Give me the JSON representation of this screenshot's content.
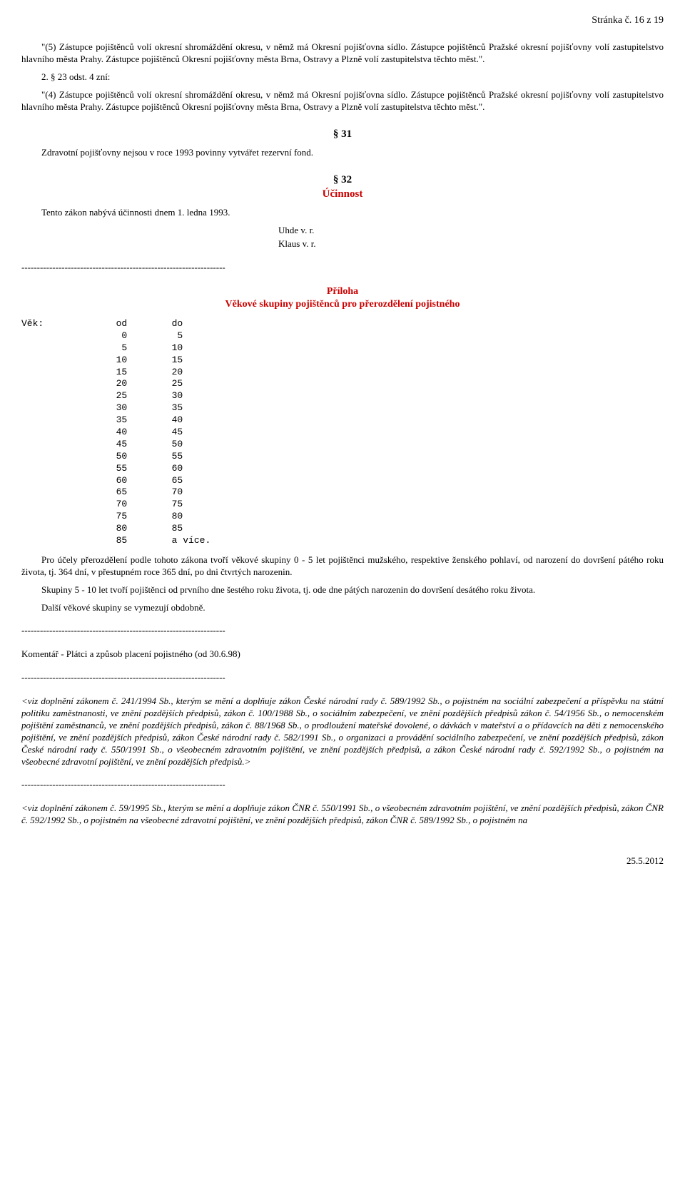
{
  "header": {
    "page_label": "Stránka č. 16 z 19"
  },
  "body": {
    "p1": "\"(5) Zástupce pojištěnců volí okresní shromáždění okresu, v němž má Okresní pojišťovna sídlo. Zástupce pojištěnců Pražské okresní pojišťovny volí zastupitelstvo hlavního města Prahy. Zástupce pojištěnců Okresní pojišťovny města Brna, Ostravy a Plzně volí zastupitelstva těchto měst.\".",
    "p2": "2. § 23 odst. 4 zní:",
    "p3": "\"(4) Zástupce pojištěnců volí okresní shromáždění okresu, v němž má Okresní pojišťovna sídlo. Zástupce pojištěnců Pražské okresní pojišťovny volí zastupitelstvo hlavního města Prahy. Zástupce pojištěnců Okresní pojišťovny města Brna, Ostravy a Plzně volí zastupitelstva těchto měst.\".",
    "s31_num": "§ 31",
    "s31_text": "Zdravotní pojišťovny nejsou v roce 1993 povinny vytvářet rezervní fond.",
    "s32_num": "§ 32",
    "s32_title": "Účinnost",
    "s32_text": "Tento zákon nabývá účinnosti dnem 1. ledna 1993.",
    "sig1": "Uhde v. r.",
    "sig2": "Klaus v. r.",
    "divider": "------------------------------------------------------------------",
    "appendix_title1": "Příloha",
    "appendix_title2": "Věkové skupiny pojištěnců pro přerozdělení pojistného",
    "table_text": "Věk:             od        do\n                  0         5\n                  5        10\n                 10        15\n                 15        20\n                 20        25\n                 25        30\n                 30        35\n                 35        40\n                 40        45\n                 45        50\n                 50        55\n                 55        60\n                 60        65\n                 65        70\n                 70        75\n                 75        80\n                 80        85\n                 85        a více.",
    "appendix_p1": "Pro účely přerozdělení podle tohoto zákona tvoří věkové skupiny 0 - 5 let pojištěnci mužského, respektive ženského pohlaví, od narození do dovršení pátého roku života, tj. 364 dní, v přestupném roce 365 dní, po dni čtvrtých narozenin.",
    "appendix_p2": "Skupiny 5 - 10 let tvoří pojištěnci od prvního dne šestého roku života, tj. ode dne pátých narozenin do dovršení desátého roku života.",
    "appendix_p3": "Další věkové skupiny se vymezují obdobně.",
    "comment_line": "Komentář - Plátci a způsob placení pojistného (od 30.6.98)",
    "note1": "<viz doplnění zákonem č. 241/1994 Sb., kterým se mění a doplňuje zákon České národní rady č. 589/1992 Sb., o pojistném na sociální zabezpečení a příspěvku na státní politiku zaměstnanosti, ve znění pozdějších předpisů, zákon č. 100/1988 Sb., o sociálním zabezpečení, ve znění pozdějších předpisů zákon č. 54/1956 Sb., o nemocenském pojištění zaměstnanců, ve znění pozdějších předpisů, zákon č. 88/1968 Sb., o prodloužení mateřské dovolené, o dávkách v mateřství a o přídavcích na děti z nemocenského pojištění, ve znění pozdějších předpisů, zákon České národní rady č. 582/1991 Sb., o organizaci a provádění sociálního zabezpečení, ve znění pozdějších předpisů, zákon České národní rady č. 550/1991 Sb., o všeobecném zdravotním pojištění, ve znění pozdějších předpisů, a zákon České národní rady č. 592/1992 Sb., o pojistném na všeobecné zdravotní pojištění, ve znění pozdějších předpisů.>",
    "note2": "<viz doplnění zákonem č. 59/1995 Sb., kterým se mění a doplňuje zákon ČNR č. 550/1991 Sb., o všeobecném zdravotním pojištění, ve znění pozdějších předpisů, zákon ČNR č. 592/1992 Sb., o pojistném na všeobecné zdravotní pojištění, ve znění pozdějších předpisů, zákon ČNR č. 589/1992 Sb., o pojistném na"
  },
  "footer": {
    "date": "25.5.2012"
  }
}
